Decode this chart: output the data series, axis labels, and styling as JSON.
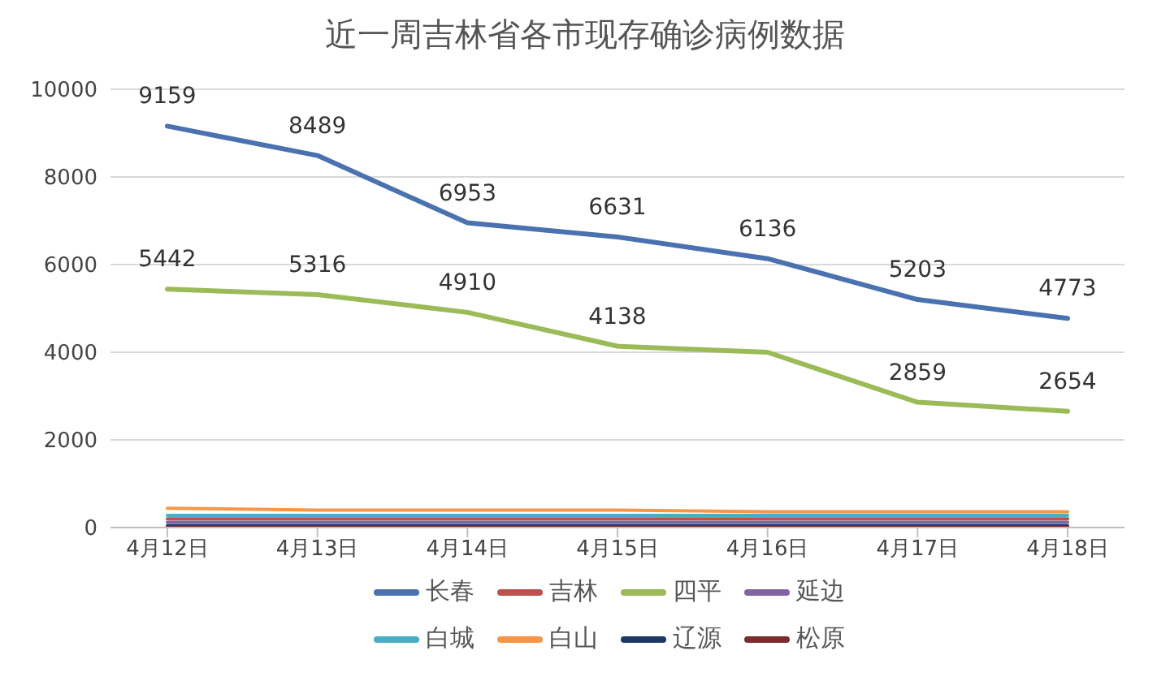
{
  "chart_data": {
    "type": "line",
    "title": "近一周吉林省各市现存确诊病例数据",
    "categories": [
      "4月12日",
      "4月13日",
      "4月14日",
      "4月15日",
      "4月16日",
      "4月17日",
      "4月18日"
    ],
    "series": [
      {
        "name": "长春",
        "color": "#4a72b0",
        "values": [
          9159,
          8489,
          6953,
          6631,
          6136,
          5203,
          4773
        ],
        "value_labels": [
          "9159",
          "8489",
          "6953",
          "6631",
          "6136",
          "5203",
          "4773"
        ]
      },
      {
        "name": "吉林",
        "color": "#c0504d",
        "values": [
          200,
          200,
          200,
          200,
          200,
          200,
          200
        ]
      },
      {
        "name": "四平",
        "color": "#9bbb59",
        "values": [
          5442,
          5316,
          4910,
          4138,
          4000,
          2859,
          2654
        ],
        "value_labels": [
          "5442",
          "5316",
          "4910",
          "4138",
          null,
          "2859",
          "2654"
        ]
      },
      {
        "name": "延边",
        "color": "#8064a2",
        "values": [
          120,
          120,
          120,
          120,
          120,
          120,
          120
        ]
      },
      {
        "name": "白城",
        "color": "#4bacc6",
        "values": [
          280,
          280,
          280,
          280,
          280,
          280,
          280
        ]
      },
      {
        "name": "白山",
        "color": "#f79646",
        "values": [
          440,
          400,
          400,
          400,
          360,
          360,
          360
        ]
      },
      {
        "name": "辽源",
        "color": "#1f3864",
        "values": [
          40,
          40,
          40,
          40,
          40,
          40,
          40
        ]
      },
      {
        "name": "松原",
        "color": "#7b2c2c",
        "values": [
          0,
          0,
          0,
          0,
          0,
          0,
          0
        ]
      }
    ],
    "ylim": [
      0,
      10000
    ],
    "yticks": [
      0,
      2000,
      4000,
      6000,
      8000,
      10000
    ],
    "grid": "y",
    "legend": "bottom",
    "marker": "none",
    "line_style": "solid"
  }
}
